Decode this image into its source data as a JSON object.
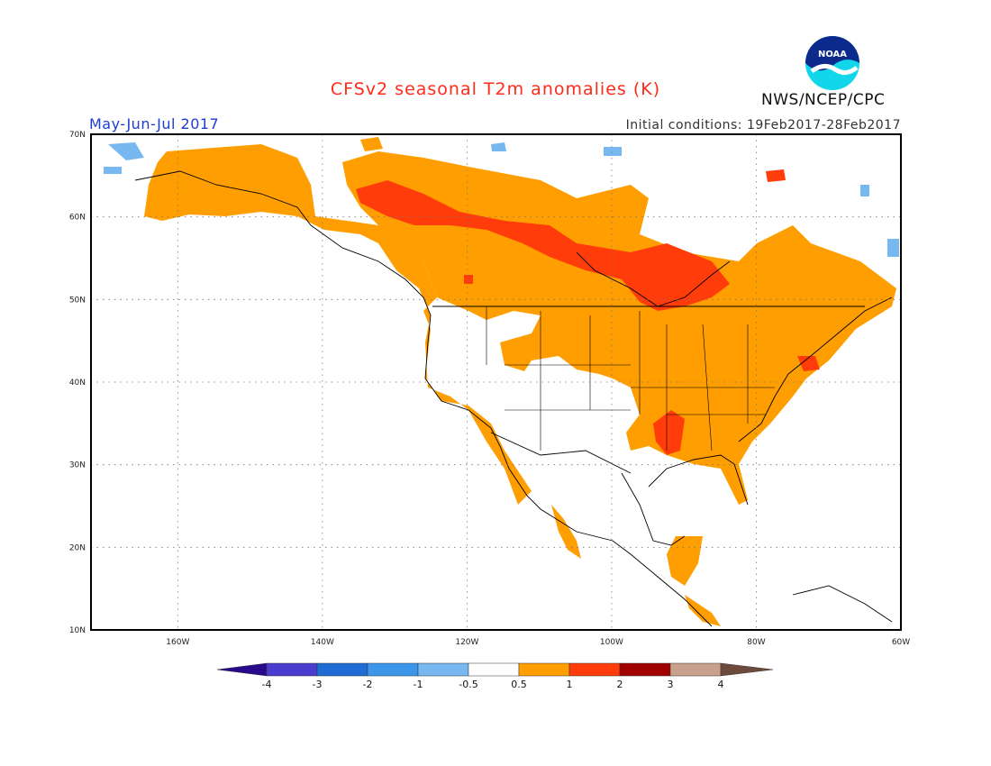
{
  "header": {
    "title": "CFSv2 seasonal T2m anomalies (K)",
    "period": "May-Jun-Jul 2017",
    "initial_conditions": "Initial conditions: 19Feb2017-28Feb2017",
    "agency": "NWS/NCEP/CPC",
    "logo_text": "NOAA"
  },
  "map": {
    "lon_range": [
      -172,
      -60
    ],
    "lat_range": [
      10,
      70
    ],
    "lon_ticks": [
      "160W",
      "140W",
      "120W",
      "100W",
      "80W",
      "60W"
    ],
    "lat_ticks": [
      "70N",
      "60N",
      "50N",
      "40N",
      "30N",
      "20N",
      "10N"
    ],
    "grid": "dotted"
  },
  "colorbar": {
    "labels": [
      "-4",
      "-3",
      "-2",
      "-1",
      "-0.5",
      "0.5",
      "1",
      "2",
      "3",
      "4"
    ],
    "colors": {
      "below_-4": "#2a0a8c",
      "-4_-3": "#4a3ccc",
      "-3_-2": "#1e6cd4",
      "-2_-1": "#3c96ea",
      "-1_-0.5": "#78b8f0",
      "-0.5_0.5": "#ffffff",
      "0.5_1": "#ff9e00",
      "1_2": "#ff3c0a",
      "2_3": "#a00000",
      "3_4": "#c8a08c",
      "above_4": "#6e4a3c"
    }
  }
}
